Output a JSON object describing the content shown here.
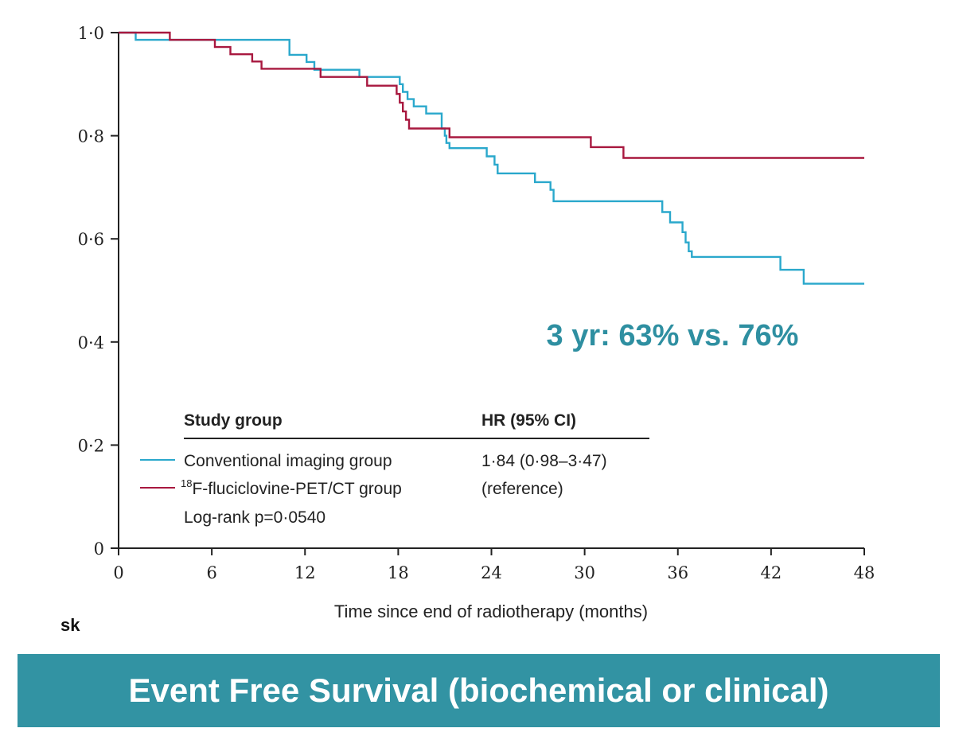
{
  "banner": {
    "title": "Event Free Survival (biochemical or clinical)",
    "background_color": "#3293a3",
    "text_color": "#ffffff"
  },
  "annotation": {
    "text": "3 yr: 63% vs. 76%",
    "color": "#2e8fa1"
  },
  "clipped_text": "sk",
  "chart_data": {
    "type": "line",
    "subtype": "kaplan-meier-step",
    "xlabel": "Time since end of radiotherapy (months)",
    "ylabel": "",
    "xlim": [
      0,
      48
    ],
    "ylim": [
      0,
      1
    ],
    "x_ticks": [
      0,
      6,
      12,
      18,
      24,
      30,
      36,
      42,
      48
    ],
    "x_tick_labels": [
      "0",
      "6",
      "12",
      "18",
      "24",
      "30",
      "36",
      "42",
      "48"
    ],
    "y_ticks": [
      0,
      0.2,
      0.4,
      0.6,
      0.8,
      1.0
    ],
    "y_tick_labels": [
      "0",
      "0·2",
      "0·4",
      "0·6",
      "0·8",
      "1·0"
    ],
    "grid": false,
    "series": [
      {
        "name": "Conventional imaging group",
        "color": "#2aa8cc",
        "points": [
          [
            0,
            1.0
          ],
          [
            1.1,
            0.986
          ],
          [
            10.8,
            0.986
          ],
          [
            11.0,
            0.957
          ],
          [
            11.6,
            0.957
          ],
          [
            12.1,
            0.943
          ],
          [
            12.6,
            0.928
          ],
          [
            15.3,
            0.928
          ],
          [
            15.5,
            0.914
          ],
          [
            17.9,
            0.914
          ],
          [
            18.1,
            0.9
          ],
          [
            18.3,
            0.885
          ],
          [
            18.6,
            0.871
          ],
          [
            19.0,
            0.857
          ],
          [
            19.6,
            0.857
          ],
          [
            19.8,
            0.843
          ],
          [
            20.7,
            0.843
          ],
          [
            20.8,
            0.814
          ],
          [
            21.0,
            0.8
          ],
          [
            21.1,
            0.786
          ],
          [
            21.3,
            0.776
          ],
          [
            23.5,
            0.776
          ],
          [
            23.7,
            0.76
          ],
          [
            24.2,
            0.744
          ],
          [
            24.4,
            0.727
          ],
          [
            26.5,
            0.727
          ],
          [
            26.8,
            0.71
          ],
          [
            27.6,
            0.71
          ],
          [
            27.8,
            0.695
          ],
          [
            28.0,
            0.673
          ],
          [
            34.8,
            0.673
          ],
          [
            35.0,
            0.652
          ],
          [
            35.5,
            0.632
          ],
          [
            36.1,
            0.632
          ],
          [
            36.3,
            0.613
          ],
          [
            36.5,
            0.593
          ],
          [
            36.7,
            0.576
          ],
          [
            36.9,
            0.565
          ],
          [
            42.4,
            0.565
          ],
          [
            42.6,
            0.54
          ],
          [
            43.9,
            0.54
          ],
          [
            44.1,
            0.513
          ],
          [
            48,
            0.513
          ]
        ]
      },
      {
        "name": "¹⁸F-fluciclovine-PET/CT group",
        "color": "#a8183f",
        "points": [
          [
            0,
            1.0
          ],
          [
            3.1,
            1.0
          ],
          [
            3.3,
            0.986
          ],
          [
            6.0,
            0.986
          ],
          [
            6.2,
            0.972
          ],
          [
            7.0,
            0.972
          ],
          [
            7.2,
            0.958
          ],
          [
            8.4,
            0.958
          ],
          [
            8.6,
            0.944
          ],
          [
            9.0,
            0.944
          ],
          [
            9.2,
            0.93
          ],
          [
            12.8,
            0.93
          ],
          [
            13.0,
            0.914
          ],
          [
            15.8,
            0.914
          ],
          [
            16.0,
            0.897
          ],
          [
            17.7,
            0.897
          ],
          [
            17.9,
            0.881
          ],
          [
            18.1,
            0.864
          ],
          [
            18.3,
            0.847
          ],
          [
            18.5,
            0.831
          ],
          [
            18.7,
            0.814
          ],
          [
            21.1,
            0.814
          ],
          [
            21.3,
            0.797
          ],
          [
            30.2,
            0.797
          ],
          [
            30.4,
            0.778
          ],
          [
            32.3,
            0.778
          ],
          [
            32.5,
            0.757
          ],
          [
            48,
            0.757
          ]
        ]
      }
    ],
    "legend": {
      "header_group": "Study group",
      "header_hr": "HR (95% CI)",
      "rows": [
        {
          "label": "Conventional imaging group",
          "hr": "1·84 (0·98–3·47)"
        },
        {
          "label_sup": "18",
          "label_main": "F-fluciclovine-PET/CT group",
          "hr": "(reference)"
        }
      ],
      "note": "Log-rank p=0·0540",
      "placement": "lower-left"
    }
  }
}
